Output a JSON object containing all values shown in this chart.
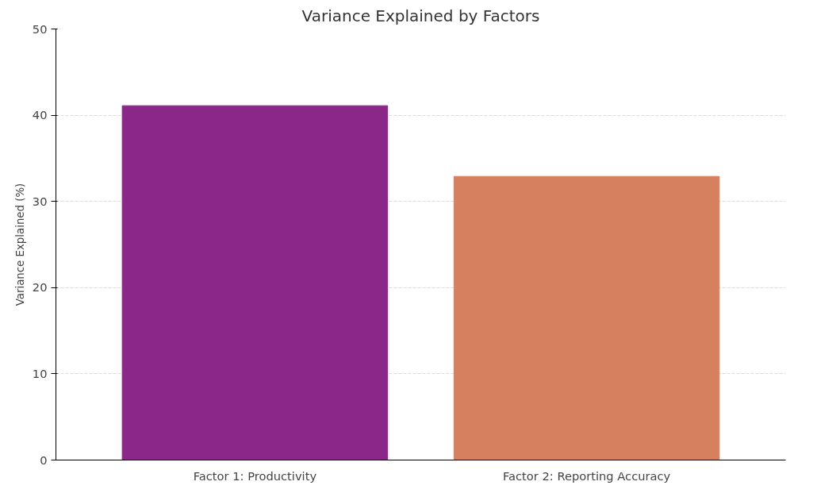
{
  "chart_data": {
    "type": "bar",
    "title": "Variance Explained by Factors",
    "ylabel": "Variance Explained (%)",
    "categories": [
      "Factor 1: Productivity",
      "Factor 2: Reporting Accuracy"
    ],
    "values": [
      41.1,
      32.9
    ],
    "colors": [
      "#8b2788",
      "#d68060"
    ],
    "ylim": [
      0,
      50
    ],
    "yticks": [
      0,
      10,
      20,
      30,
      40,
      50
    ],
    "grid": "y"
  }
}
